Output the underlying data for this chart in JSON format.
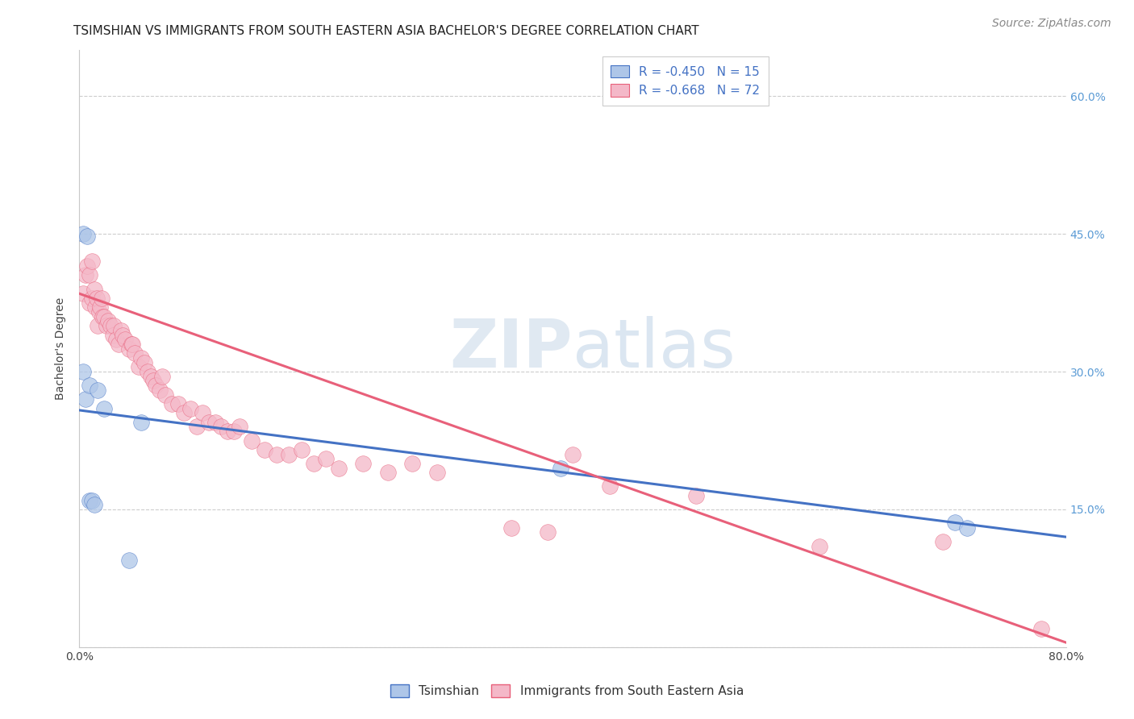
{
  "title": "TSIMSHIAN VS IMMIGRANTS FROM SOUTH EASTERN ASIA BACHELOR'S DEGREE CORRELATION CHART",
  "source": "Source: ZipAtlas.com",
  "ylabel": "Bachelor's Degree",
  "watermark_zip": "ZIP",
  "watermark_atlas": "atlas",
  "r_tsimshian": -0.45,
  "n_tsimshian": 15,
  "r_immigrants": -0.668,
  "n_immigrants": 72,
  "xlim": [
    0.0,
    0.8
  ],
  "ylim": [
    0.0,
    0.65
  ],
  "color_tsimshian_fill": "#aec6e8",
  "color_tsimshian_edge": "#4472c4",
  "color_tsimshian_line": "#4472c4",
  "color_immigrants_fill": "#f4b8c8",
  "color_immigrants_edge": "#e8607a",
  "color_immigrants_line": "#e8607a",
  "background": "#ffffff",
  "grid_color": "#c8c8c8",
  "title_color": "#222222",
  "axis_label_color": "#444444",
  "tick_color": "#444444",
  "right_tick_color": "#5b9bd5",
  "source_color": "#888888",
  "legend_text_color": "#4472c4",
  "title_fontsize": 11,
  "axis_label_fontsize": 10,
  "tick_fontsize": 10,
  "legend_fontsize": 11,
  "source_fontsize": 10,
  "tsimshian_x": [
    0.003,
    0.006,
    0.003,
    0.005,
    0.008,
    0.01,
    0.012,
    0.008,
    0.015,
    0.02,
    0.04,
    0.05,
    0.39,
    0.71,
    0.72
  ],
  "tsimshian_y": [
    0.45,
    0.448,
    0.3,
    0.27,
    0.16,
    0.16,
    0.155,
    0.285,
    0.28,
    0.26,
    0.095,
    0.245,
    0.195,
    0.136,
    0.13
  ],
  "immigrants_x": [
    0.003,
    0.005,
    0.006,
    0.008,
    0.008,
    0.01,
    0.01,
    0.012,
    0.013,
    0.014,
    0.015,
    0.016,
    0.017,
    0.018,
    0.019,
    0.02,
    0.022,
    0.023,
    0.025,
    0.027,
    0.028,
    0.03,
    0.032,
    0.034,
    0.035,
    0.037,
    0.04,
    0.042,
    0.043,
    0.045,
    0.048,
    0.05,
    0.053,
    0.055,
    0.058,
    0.06,
    0.062,
    0.065,
    0.067,
    0.07,
    0.075,
    0.08,
    0.085,
    0.09,
    0.095,
    0.1,
    0.105,
    0.11,
    0.115,
    0.12,
    0.125,
    0.13,
    0.14,
    0.15,
    0.16,
    0.17,
    0.18,
    0.19,
    0.2,
    0.21,
    0.23,
    0.25,
    0.27,
    0.29,
    0.35,
    0.38,
    0.4,
    0.43,
    0.5,
    0.6,
    0.7,
    0.78
  ],
  "immigrants_y": [
    0.385,
    0.405,
    0.415,
    0.375,
    0.405,
    0.38,
    0.42,
    0.39,
    0.37,
    0.38,
    0.35,
    0.365,
    0.37,
    0.38,
    0.36,
    0.36,
    0.35,
    0.355,
    0.35,
    0.34,
    0.35,
    0.335,
    0.33,
    0.345,
    0.34,
    0.335,
    0.325,
    0.33,
    0.33,
    0.32,
    0.305,
    0.315,
    0.31,
    0.3,
    0.295,
    0.29,
    0.285,
    0.28,
    0.295,
    0.275,
    0.265,
    0.265,
    0.255,
    0.26,
    0.24,
    0.255,
    0.245,
    0.245,
    0.24,
    0.235,
    0.235,
    0.24,
    0.225,
    0.215,
    0.21,
    0.21,
    0.215,
    0.2,
    0.205,
    0.195,
    0.2,
    0.19,
    0.2,
    0.19,
    0.13,
    0.125,
    0.21,
    0.175,
    0.165,
    0.11,
    0.115,
    0.02
  ]
}
